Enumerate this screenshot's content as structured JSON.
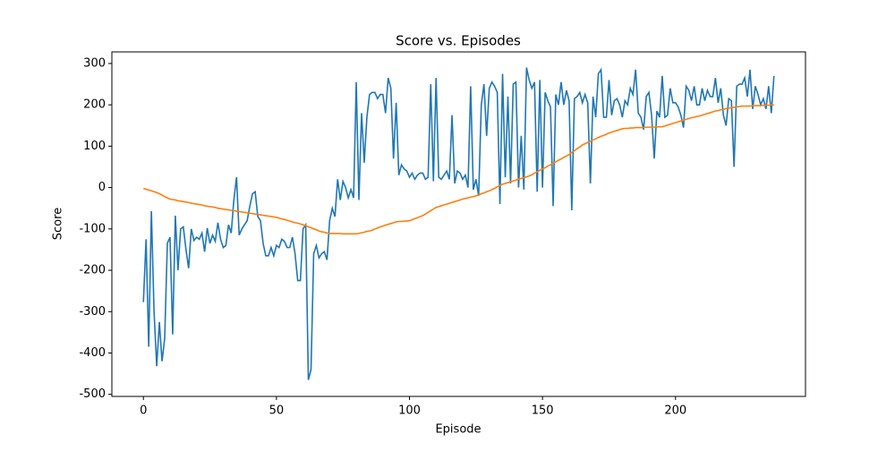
{
  "chart_data": {
    "type": "line",
    "title": "Score vs. Episodes",
    "x_label": "Episode",
    "y_label": "Score",
    "x": [
      0,
      1,
      2,
      3,
      4,
      5,
      6,
      7,
      8,
      9,
      10,
      11,
      12,
      13,
      14,
      15,
      16,
      17,
      18,
      19,
      20,
      21,
      22,
      23,
      24,
      25,
      26,
      27,
      28,
      29,
      30,
      31,
      32,
      33,
      34,
      35,
      36,
      37,
      38,
      39,
      40,
      41,
      42,
      43,
      44,
      45,
      46,
      47,
      48,
      49,
      50,
      51,
      52,
      53,
      54,
      55,
      56,
      57,
      58,
      59,
      60,
      61,
      62,
      63,
      64,
      65,
      66,
      67,
      68,
      69,
      70,
      71,
      72,
      73,
      74,
      75,
      76,
      77,
      78,
      79,
      80,
      81,
      82,
      83,
      84,
      85,
      86,
      87,
      88,
      89,
      90,
      91,
      92,
      93,
      94,
      95,
      96,
      97,
      98,
      99,
      100,
      101,
      102,
      103,
      104,
      105,
      106,
      107,
      108,
      109,
      110,
      111,
      112,
      113,
      114,
      115,
      116,
      117,
      118,
      119,
      120,
      121,
      122,
      123,
      124,
      125,
      126,
      127,
      128,
      129,
      130,
      131,
      132,
      133,
      134,
      135,
      136,
      137,
      138,
      139,
      140,
      141,
      142,
      143,
      144,
      145,
      146,
      147,
      148,
      149,
      150,
      151,
      152,
      153,
      154,
      155,
      156,
      157,
      158,
      159,
      160,
      161,
      162,
      163,
      164,
      165,
      166,
      167,
      168,
      169,
      170,
      171,
      172,
      173,
      174,
      175,
      176,
      177,
      178,
      179,
      180,
      181,
      182,
      183,
      184,
      185,
      186,
      187,
      188,
      189,
      190,
      191,
      192,
      193,
      194,
      195,
      196,
      197,
      198,
      199,
      200,
      201,
      202,
      203,
      204,
      205,
      206,
      207,
      208,
      209,
      210,
      211,
      212,
      213,
      214,
      215,
      216,
      217,
      218,
      219,
      220,
      221,
      222,
      223,
      224,
      225,
      226,
      227,
      228,
      229,
      230,
      231,
      232,
      233,
      234,
      235,
      236,
      237
    ],
    "series": [
      {
        "color": "#1f77b4",
        "values": [
          -277,
          -125,
          -385,
          -57,
          -300,
          -432,
          -325,
          -420,
          -365,
          -135,
          -120,
          -355,
          -68,
          -200,
          -100,
          -95,
          -150,
          -195,
          -100,
          -128,
          -120,
          -125,
          -110,
          -155,
          -98,
          -135,
          -115,
          -130,
          -85,
          -125,
          -145,
          -140,
          -90,
          -110,
          -30,
          25,
          -115,
          -100,
          -90,
          -80,
          -45,
          -15,
          -10,
          -70,
          -80,
          -135,
          -165,
          -165,
          -145,
          -165,
          -140,
          -145,
          -125,
          -130,
          -145,
          -145,
          -120,
          -160,
          -225,
          -225,
          -100,
          -90,
          -465,
          -440,
          -160,
          -140,
          -170,
          -160,
          -155,
          -175,
          -80,
          -50,
          -70,
          20,
          -30,
          15,
          0,
          -25,
          -5,
          -25,
          255,
          -30,
          180,
          60,
          170,
          225,
          230,
          230,
          215,
          225,
          225,
          180,
          265,
          240,
          70,
          205,
          30,
          55,
          45,
          40,
          25,
          35,
          20,
          30,
          35,
          35,
          20,
          25,
          250,
          15,
          265,
          25,
          20,
          30,
          40,
          20,
          175,
          10,
          40,
          35,
          20,
          30,
          0,
          245,
          -5,
          20,
          -20,
          200,
          250,
          125,
          240,
          255,
          245,
          230,
          -40,
          275,
          25,
          220,
          10,
          250,
          255,
          0,
          125,
          -5,
          290,
          260,
          240,
          255,
          -10,
          260,
          0,
          230,
          210,
          195,
          -45,
          225,
          200,
          255,
          200,
          235,
          210,
          -55,
          215,
          220,
          230,
          205,
          225,
          205,
          10,
          220,
          170,
          275,
          285,
          170,
          170,
          260,
          175,
          210,
          215,
          200,
          170,
          210,
          200,
          240,
          225,
          285,
          180,
          170,
          140,
          220,
          230,
          175,
          70,
          185,
          170,
          270,
          170,
          175,
          240,
          205,
          205,
          195,
          175,
          145,
          245,
          235,
          210,
          245,
          200,
          200,
          240,
          210,
          235,
          220,
          220,
          265,
          205,
          240,
          175,
          150,
          215,
          210,
          50,
          245,
          250,
          250,
          265,
          220,
          285,
          190,
          245,
          225,
          200,
          215,
          190,
          245,
          180,
          270
        ]
      },
      {
        "color": "#ff7f0e",
        "values": [
          -2,
          -4,
          -6,
          -8,
          -10,
          -12,
          -15,
          -18,
          -22,
          -25,
          -28,
          -29,
          -30,
          -32,
          -33,
          -34,
          -35,
          -36,
          -38,
          -39,
          -40,
          -41,
          -42,
          -44,
          -45,
          -46,
          -47,
          -48,
          -50,
          -51,
          -52,
          -53,
          -54,
          -55,
          -56,
          -57,
          -58,
          -59,
          -60,
          -61,
          -62,
          -63,
          -64,
          -65,
          -66,
          -67,
          -68,
          -69,
          -70,
          -71,
          -72,
          -74,
          -76,
          -77,
          -79,
          -81,
          -83,
          -85,
          -86,
          -88,
          -90,
          -92,
          -95,
          -97,
          -100,
          -102,
          -105,
          -107,
          -108,
          -110,
          -111,
          -111,
          -111,
          -111,
          -111,
          -112,
          -112,
          -112,
          -112,
          -112,
          -112,
          -111,
          -109,
          -108,
          -106,
          -105,
          -103,
          -100,
          -98,
          -95,
          -93,
          -91,
          -89,
          -87,
          -85,
          -83,
          -82,
          -82,
          -81,
          -81,
          -80,
          -78,
          -75,
          -73,
          -70,
          -68,
          -64,
          -60,
          -56,
          -52,
          -48,
          -46,
          -44,
          -42,
          -40,
          -38,
          -36,
          -34,
          -32,
          -30,
          -28,
          -26,
          -25,
          -23,
          -22,
          -20,
          -18,
          -15,
          -13,
          -10,
          -8,
          -5,
          -2,
          2,
          5,
          8,
          10,
          12,
          14,
          16,
          18,
          20,
          22,
          24,
          26,
          28,
          31,
          35,
          38,
          42,
          45,
          48,
          52,
          55,
          59,
          62,
          66,
          69,
          73,
          76,
          80,
          85,
          89,
          94,
          98,
          103,
          106,
          109,
          112,
          115,
          118,
          121,
          124,
          126,
          129,
          132,
          134,
          136,
          138,
          140,
          142,
          143,
          143,
          144,
          144,
          145,
          145,
          145,
          145,
          146,
          146,
          146,
          146,
          147,
          147,
          147,
          149,
          151,
          153,
          155,
          157,
          159,
          161,
          163,
          165,
          167,
          169,
          170,
          172,
          173,
          175,
          177,
          179,
          181,
          183,
          185,
          186,
          188,
          189,
          191,
          192,
          193,
          194,
          195,
          196,
          197,
          197,
          197,
          197,
          198,
          198,
          198,
          198,
          199,
          199,
          199,
          200,
          200
        ]
      }
    ],
    "xlim": [
      -11.85,
      248.85
    ],
    "ylim": [
      -505,
      328
    ],
    "xticks": [
      0,
      50,
      100,
      150,
      200
    ],
    "yticks": [
      -500,
      -400,
      -300,
      -200,
      -100,
      0,
      100,
      200,
      300
    ]
  }
}
